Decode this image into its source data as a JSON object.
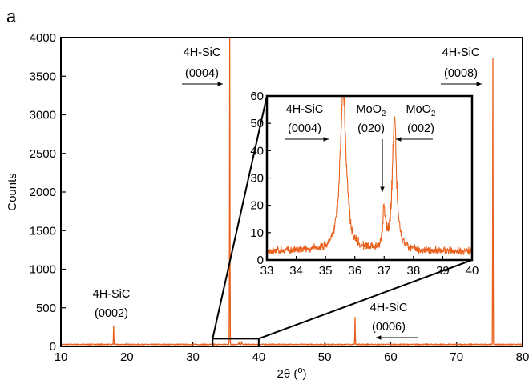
{
  "panel_label": "a",
  "chart_data": {
    "type": "line",
    "title": "",
    "xlabel": "2θ (o)",
    "xlabel_parts": [
      "2θ (",
      "o",
      ")"
    ],
    "ylabel": "Counts",
    "xlim": [
      10,
      80
    ],
    "ylim": [
      0,
      4000
    ],
    "xticks": [
      10,
      20,
      30,
      40,
      50,
      60,
      70,
      80
    ],
    "yticks": [
      0,
      500,
      1000,
      1500,
      2000,
      2500,
      3000,
      3500,
      4000
    ],
    "series_color": "#e8601c",
    "baseline": 25,
    "peaks": [
      {
        "x": 18.0,
        "y": 245
      },
      {
        "x": 35.6,
        "y": 4000
      },
      {
        "x": 37.0,
        "y": 30
      },
      {
        "x": 37.4,
        "y": 45
      },
      {
        "x": 54.6,
        "y": 360
      },
      {
        "x": 75.5,
        "y": 3700
      }
    ],
    "annotations": [
      {
        "id": "p0002",
        "line1": "4H-SiC",
        "line2": "(0002)"
      },
      {
        "id": "p0004",
        "line1": "4H-SiC",
        "line2": "(0004)"
      },
      {
        "id": "p0006",
        "line1": "4H-SiC",
        "line2": "(0006)"
      },
      {
        "id": "p0008",
        "line1": "4H-SiC",
        "line2": "(0008)"
      }
    ],
    "zoom_box": {
      "x": [
        33,
        40
      ],
      "y": [
        0,
        100
      ]
    },
    "inset": {
      "xlim": [
        33,
        40
      ],
      "ylim": [
        0,
        60
      ],
      "xticks": [
        33,
        34,
        35,
        36,
        37,
        38,
        39,
        40
      ],
      "yticks": [
        0,
        10,
        20,
        30,
        40,
        50,
        60
      ],
      "baseline": 3,
      "peaks": [
        {
          "x": 35.6,
          "y": 60,
          "w": 0.12
        },
        {
          "x": 37.0,
          "y": 15,
          "w": 0.05
        },
        {
          "x": 37.35,
          "y": 50,
          "w": 0.08
        }
      ],
      "annotations": [
        {
          "id": "i0004",
          "line1": "4H-SiC",
          "line2": "(0004)"
        },
        {
          "id": "i020",
          "line1_base": "MoO",
          "line1_sub": "2",
          "line2": "(020)"
        },
        {
          "id": "i002",
          "line1_base": "MoO",
          "line1_sub": "2",
          "line2": "(002)"
        }
      ]
    }
  }
}
